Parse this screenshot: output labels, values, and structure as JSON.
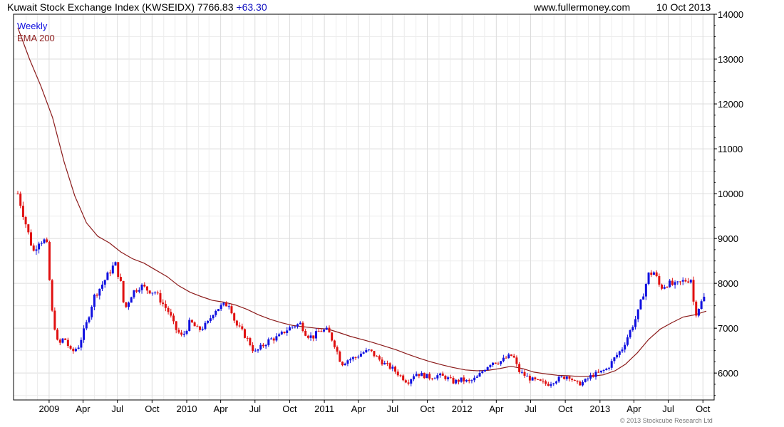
{
  "header": {
    "title": "Kuwait Stock Exchange Index (KWSEIDX)",
    "last": "7766.83",
    "change": "+63.30",
    "site": "www.fullermoney.com",
    "date": "10 Oct 2013"
  },
  "legend": {
    "period": "Weekly",
    "ema": "EMA 200"
  },
  "copyright": "© 2013 Stockcube Research Ltd",
  "colors": {
    "up": "#1010e0",
    "down": "#e01010",
    "ema": "#8b1a1a",
    "grid": "#dcdcdc",
    "title_change": "#1010c0"
  },
  "chart_data": {
    "type": "candlestick",
    "ylim": [
      5400,
      14000
    ],
    "yticks": [
      6000,
      7000,
      8000,
      9000,
      10000,
      11000,
      12000,
      13000,
      14000
    ],
    "xticks": [
      {
        "label": "2009",
        "date": "2009-01-01"
      },
      {
        "label": "Apr",
        "date": "2009-04-01"
      },
      {
        "label": "Jul",
        "date": "2009-07-01"
      },
      {
        "label": "Oct",
        "date": "2009-10-01"
      },
      {
        "label": "2010",
        "date": "2010-01-01"
      },
      {
        "label": "Apr",
        "date": "2010-04-01"
      },
      {
        "label": "Jul",
        "date": "2010-07-01"
      },
      {
        "label": "Oct",
        "date": "2010-10-01"
      },
      {
        "label": "2011",
        "date": "2011-01-01"
      },
      {
        "label": "Apr",
        "date": "2011-04-01"
      },
      {
        "label": "Jul",
        "date": "2011-07-01"
      },
      {
        "label": "Oct",
        "date": "2011-10-01"
      },
      {
        "label": "2012",
        "date": "2012-01-01"
      },
      {
        "label": "Apr",
        "date": "2012-04-01"
      },
      {
        "label": "Jul",
        "date": "2012-07-01"
      },
      {
        "label": "Oct",
        "date": "2012-10-01"
      },
      {
        "label": "2013",
        "date": "2013-01-01"
      },
      {
        "label": "Apr",
        "date": "2013-04-01"
      },
      {
        "label": "Jul",
        "date": "2013-07-01"
      },
      {
        "label": "Oct",
        "date": "2013-10-01"
      }
    ],
    "start_date": "2008-10-10",
    "end_date": "2013-10-10",
    "weekly_close": [
      [
        [
          2008,
          10,
          10
        ],
        10000
      ],
      [
        [
          2008,
          11,
          1
        ],
        9300
      ],
      [
        [
          2008,
          11,
          20
        ],
        8700
      ],
      [
        [
          2008,
          12,
          5
        ],
        8950
      ],
      [
        [
          2008,
          12,
          25
        ],
        8950
      ],
      [
        [
          2009,
          1,
          8
        ],
        7400
      ],
      [
        [
          2009,
          1,
          25
        ],
        6600
      ],
      [
        [
          2009,
          2,
          10
        ],
        6800
      ],
      [
        [
          2009,
          3,
          1
        ],
        6450
      ],
      [
        [
          2009,
          3,
          20
        ],
        6600
      ],
      [
        [
          2009,
          4,
          10
        ],
        7100
      ],
      [
        [
          2009,
          4,
          30
        ],
        7700
      ],
      [
        [
          2009,
          5,
          20
        ],
        7950
      ],
      [
        [
          2009,
          6,
          10
        ],
        8250
      ],
      [
        [
          2009,
          6,
          25
        ],
        8450
      ],
      [
        [
          2009,
          7,
          10
        ],
        8000
      ],
      [
        [
          2009,
          7,
          20
        ],
        7400
      ],
      [
        [
          2009,
          8,
          10
        ],
        7800
      ],
      [
        [
          2009,
          9,
          1
        ],
        7950
      ],
      [
        [
          2009,
          9,
          20
        ],
        7850
      ],
      [
        [
          2009,
          10,
          10
        ],
        7800
      ],
      [
        [
          2009,
          10,
          25
        ],
        7600
      ],
      [
        [
          2009,
          11,
          15
        ],
        7350
      ],
      [
        [
          2009,
          12,
          1
        ],
        7000
      ],
      [
        [
          2009,
          12,
          20
        ],
        6800
      ],
      [
        [
          2010,
          1,
          10
        ],
        7150
      ],
      [
        [
          2010,
          2,
          1
        ],
        6950
      ],
      [
        [
          2010,
          2,
          25
        ],
        7100
      ],
      [
        [
          2010,
          3,
          15
        ],
        7400
      ],
      [
        [
          2010,
          4,
          5
        ],
        7500
      ],
      [
        [
          2010,
          4,
          25
        ],
        7550
      ],
      [
        [
          2010,
          5,
          10
        ],
        7100
      ],
      [
        [
          2010,
          5,
          30
        ],
        6900
      ],
      [
        [
          2010,
          6,
          15
        ],
        6700
      ],
      [
        [
          2010,
          6,
          30
        ],
        6450
      ],
      [
        [
          2010,
          7,
          20
        ],
        6600
      ],
      [
        [
          2010,
          8,
          10
        ],
        6750
      ],
      [
        [
          2010,
          9,
          1
        ],
        6800
      ],
      [
        [
          2010,
          9,
          20
        ],
        6950
      ],
      [
        [
          2010,
          10,
          10
        ],
        7050
      ],
      [
        [
          2010,
          10,
          30
        ],
        7100
      ],
      [
        [
          2010,
          11,
          15
        ],
        6850
      ],
      [
        [
          2010,
          12,
          1
        ],
        6800
      ],
      [
        [
          2010,
          12,
          20
        ],
        6950
      ],
      [
        [
          2011,
          1,
          10
        ],
        6950
      ],
      [
        [
          2011,
          1,
          30
        ],
        6600
      ],
      [
        [
          2011,
          2,
          15
        ],
        6200
      ],
      [
        [
          2011,
          3,
          5
        ],
        6300
      ],
      [
        [
          2011,
          3,
          25
        ],
        6350
      ],
      [
        [
          2011,
          4,
          10
        ],
        6450
      ],
      [
        [
          2011,
          5,
          1
        ],
        6500
      ],
      [
        [
          2011,
          5,
          20
        ],
        6350
      ],
      [
        [
          2011,
          6,
          10
        ],
        6200
      ],
      [
        [
          2011,
          6,
          30
        ],
        6100
      ],
      [
        [
          2011,
          7,
          20
        ],
        5950
      ],
      [
        [
          2011,
          8,
          10
        ],
        5800
      ],
      [
        [
          2011,
          8,
          30
        ],
        6000
      ],
      [
        [
          2011,
          9,
          20
        ],
        5950
      ],
      [
        [
          2011,
          10,
          10
        ],
        5900
      ],
      [
        [
          2011,
          10,
          30
        ],
        5950
      ],
      [
        [
          2011,
          11,
          20
        ],
        5900
      ],
      [
        [
          2011,
          12,
          10
        ],
        5800
      ],
      [
        [
          2011,
          12,
          30
        ],
        5850
      ],
      [
        [
          2012,
          1,
          20
        ],
        5800
      ],
      [
        [
          2012,
          2,
          10
        ],
        5900
      ],
      [
        [
          2012,
          3,
          1
        ],
        6100
      ],
      [
        [
          2012,
          3,
          20
        ],
        6250
      ],
      [
        [
          2012,
          4,
          10
        ],
        6250
      ],
      [
        [
          2012,
          4,
          30
        ],
        6350
      ],
      [
        [
          2012,
          5,
          15
        ],
        6400
      ],
      [
        [
          2012,
          5,
          30
        ],
        6050
      ],
      [
        [
          2012,
          6,
          15
        ],
        5950
      ],
      [
        [
          2012,
          7,
          5
        ],
        5850
      ],
      [
        [
          2012,
          7,
          25
        ],
        5800
      ],
      [
        [
          2012,
          8,
          15
        ],
        5750
      ],
      [
        [
          2012,
          9,
          5
        ],
        5850
      ],
      [
        [
          2012,
          9,
          25
        ],
        5900
      ],
      [
        [
          2012,
          10,
          10
        ],
        5950
      ],
      [
        [
          2012,
          10,
          30
        ],
        5750
      ],
      [
        [
          2012,
          11,
          20
        ],
        5800
      ],
      [
        [
          2012,
          12,
          10
        ],
        5950
      ],
      [
        [
          2012,
          12,
          30
        ],
        6000
      ],
      [
        [
          2013,
          1,
          20
        ],
        6100
      ],
      [
        [
          2013,
          2,
          10
        ],
        6350
      ],
      [
        [
          2013,
          3,
          1
        ],
        6550
      ],
      [
        [
          2013,
          3,
          20
        ],
        6900
      ],
      [
        [
          2013,
          4,
          10
        ],
        7300
      ],
      [
        [
          2013,
          4,
          25
        ],
        7750
      ],
      [
        [
          2013,
          5,
          10
        ],
        8200
      ],
      [
        [
          2013,
          5,
          25
        ],
        8250
      ],
      [
        [
          2013,
          6,
          10
        ],
        7900
      ],
      [
        [
          2013,
          6,
          30
        ],
        8000
      ],
      [
        [
          2013,
          7,
          20
        ],
        7950
      ],
      [
        [
          2013,
          8,
          10
        ],
        8050
      ],
      [
        [
          2013,
          8,
          30
        ],
        8100
      ],
      [
        [
          2013,
          9,
          10
        ],
        7300
      ],
      [
        [
          2013,
          9,
          25
        ],
        7550
      ],
      [
        [
          2013,
          10,
          10
        ],
        7767
      ]
    ],
    "ema200": [
      [
        [
          2008,
          10,
          10
        ],
        13700
      ],
      [
        [
          2008,
          11,
          10
        ],
        13000
      ],
      [
        [
          2008,
          12,
          10
        ],
        12400
      ],
      [
        [
          2009,
          1,
          10
        ],
        11700
      ],
      [
        [
          2009,
          2,
          10
        ],
        10700
      ],
      [
        [
          2009,
          3,
          10
        ],
        9950
      ],
      [
        [
          2009,
          4,
          10
        ],
        9350
      ],
      [
        [
          2009,
          5,
          10
        ],
        9050
      ],
      [
        [
          2009,
          6,
          10
        ],
        8900
      ],
      [
        [
          2009,
          7,
          10
        ],
        8700
      ],
      [
        [
          2009,
          8,
          10
        ],
        8550
      ],
      [
        [
          2009,
          9,
          10
        ],
        8450
      ],
      [
        [
          2009,
          10,
          10
        ],
        8300
      ],
      [
        [
          2009,
          11,
          10
        ],
        8150
      ],
      [
        [
          2009,
          12,
          10
        ],
        7950
      ],
      [
        [
          2010,
          1,
          10
        ],
        7800
      ],
      [
        [
          2010,
          2,
          10
        ],
        7700
      ],
      [
        [
          2010,
          3,
          10
        ],
        7620
      ],
      [
        [
          2010,
          4,
          10
        ],
        7580
      ],
      [
        [
          2010,
          5,
          10
        ],
        7520
      ],
      [
        [
          2010,
          6,
          10
        ],
        7420
      ],
      [
        [
          2010,
          7,
          10
        ],
        7300
      ],
      [
        [
          2010,
          8,
          10
        ],
        7200
      ],
      [
        [
          2010,
          9,
          10
        ],
        7120
      ],
      [
        [
          2010,
          10,
          10
        ],
        7060
      ],
      [
        [
          2010,
          11,
          10
        ],
        7030
      ],
      [
        [
          2010,
          12,
          10
        ],
        7000
      ],
      [
        [
          2011,
          1,
          10
        ],
        6980
      ],
      [
        [
          2011,
          2,
          10
        ],
        6900
      ],
      [
        [
          2011,
          3,
          10
        ],
        6820
      ],
      [
        [
          2011,
          4,
          10
        ],
        6750
      ],
      [
        [
          2011,
          5,
          10
        ],
        6680
      ],
      [
        [
          2011,
          6,
          10
        ],
        6600
      ],
      [
        [
          2011,
          7,
          10
        ],
        6520
      ],
      [
        [
          2011,
          8,
          10
        ],
        6420
      ],
      [
        [
          2011,
          9,
          10
        ],
        6330
      ],
      [
        [
          2011,
          10,
          10
        ],
        6250
      ],
      [
        [
          2011,
          11,
          10
        ],
        6180
      ],
      [
        [
          2011,
          12,
          10
        ],
        6120
      ],
      [
        [
          2012,
          1,
          10
        ],
        6070
      ],
      [
        [
          2012,
          2,
          10
        ],
        6050
      ],
      [
        [
          2012,
          3,
          10
        ],
        6060
      ],
      [
        [
          2012,
          4,
          10
        ],
        6100
      ],
      [
        [
          2012,
          5,
          10
        ],
        6150
      ],
      [
        [
          2012,
          6,
          10
        ],
        6100
      ],
      [
        [
          2012,
          7,
          10
        ],
        6020
      ],
      [
        [
          2012,
          8,
          10
        ],
        5980
      ],
      [
        [
          2012,
          9,
          10
        ],
        5950
      ],
      [
        [
          2012,
          10,
          10
        ],
        5940
      ],
      [
        [
          2012,
          11,
          10
        ],
        5920
      ],
      [
        [
          2012,
          12,
          10
        ],
        5930
      ],
      [
        [
          2013,
          1,
          10
        ],
        5960
      ],
      [
        [
          2013,
          2,
          10
        ],
        6050
      ],
      [
        [
          2013,
          3,
          10
        ],
        6200
      ],
      [
        [
          2013,
          4,
          10
        ],
        6450
      ],
      [
        [
          2013,
          5,
          10
        ],
        6750
      ],
      [
        [
          2013,
          6,
          10
        ],
        6980
      ],
      [
        [
          2013,
          7,
          10
        ],
        7120
      ],
      [
        [
          2013,
          8,
          10
        ],
        7250
      ],
      [
        [
          2013,
          9,
          10
        ],
        7300
      ],
      [
        [
          2013,
          10,
          10
        ],
        7380
      ]
    ]
  }
}
